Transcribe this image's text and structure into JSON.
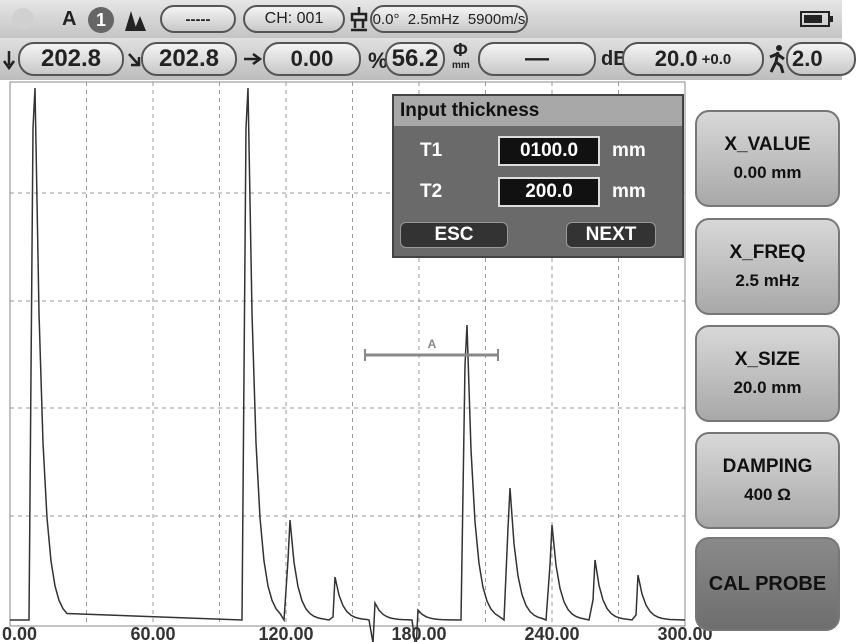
{
  "status_bar": {
    "mode": "A",
    "channel_index": "1",
    "gate_status": "-----",
    "channel": "CH: 001",
    "probe_info": "0.0°  2.5mHz  5900m/s"
  },
  "readings": [
    {
      "value": "202.8"
    },
    {
      "value": "202.8"
    },
    {
      "value": "0.00"
    },
    {
      "label": "%",
      "value": "56.2"
    },
    {
      "label": "Φ",
      "unit": "mm",
      "value": "—"
    },
    {
      "label": "dB",
      "value": "20.0",
      "offset": "+0.0"
    },
    {
      "value": "2.0"
    }
  ],
  "waveform": {
    "gate_label": "A",
    "x_labels": [
      "0.00",
      "60.00",
      "120.00",
      "180.00",
      "240.00",
      "300.00"
    ]
  },
  "dialog": {
    "title": "Input thickness",
    "fields": [
      {
        "label": "T1",
        "value": "0100.0",
        "unit": "mm"
      },
      {
        "label": "T2",
        "value": "200.0",
        "unit": "mm"
      }
    ],
    "buttons": [
      "ESC",
      "NEXT"
    ]
  },
  "menu": [
    {
      "title": "X_VALUE",
      "value": "0.00 mm"
    },
    {
      "title": "X_FREQ",
      "value": "2.5 mHz"
    },
    {
      "title": "X_SIZE",
      "value": "20.0 mm"
    },
    {
      "title": "DAMPING",
      "value": "400 Ω"
    },
    {
      "title": "CAL PROBE"
    }
  ]
}
